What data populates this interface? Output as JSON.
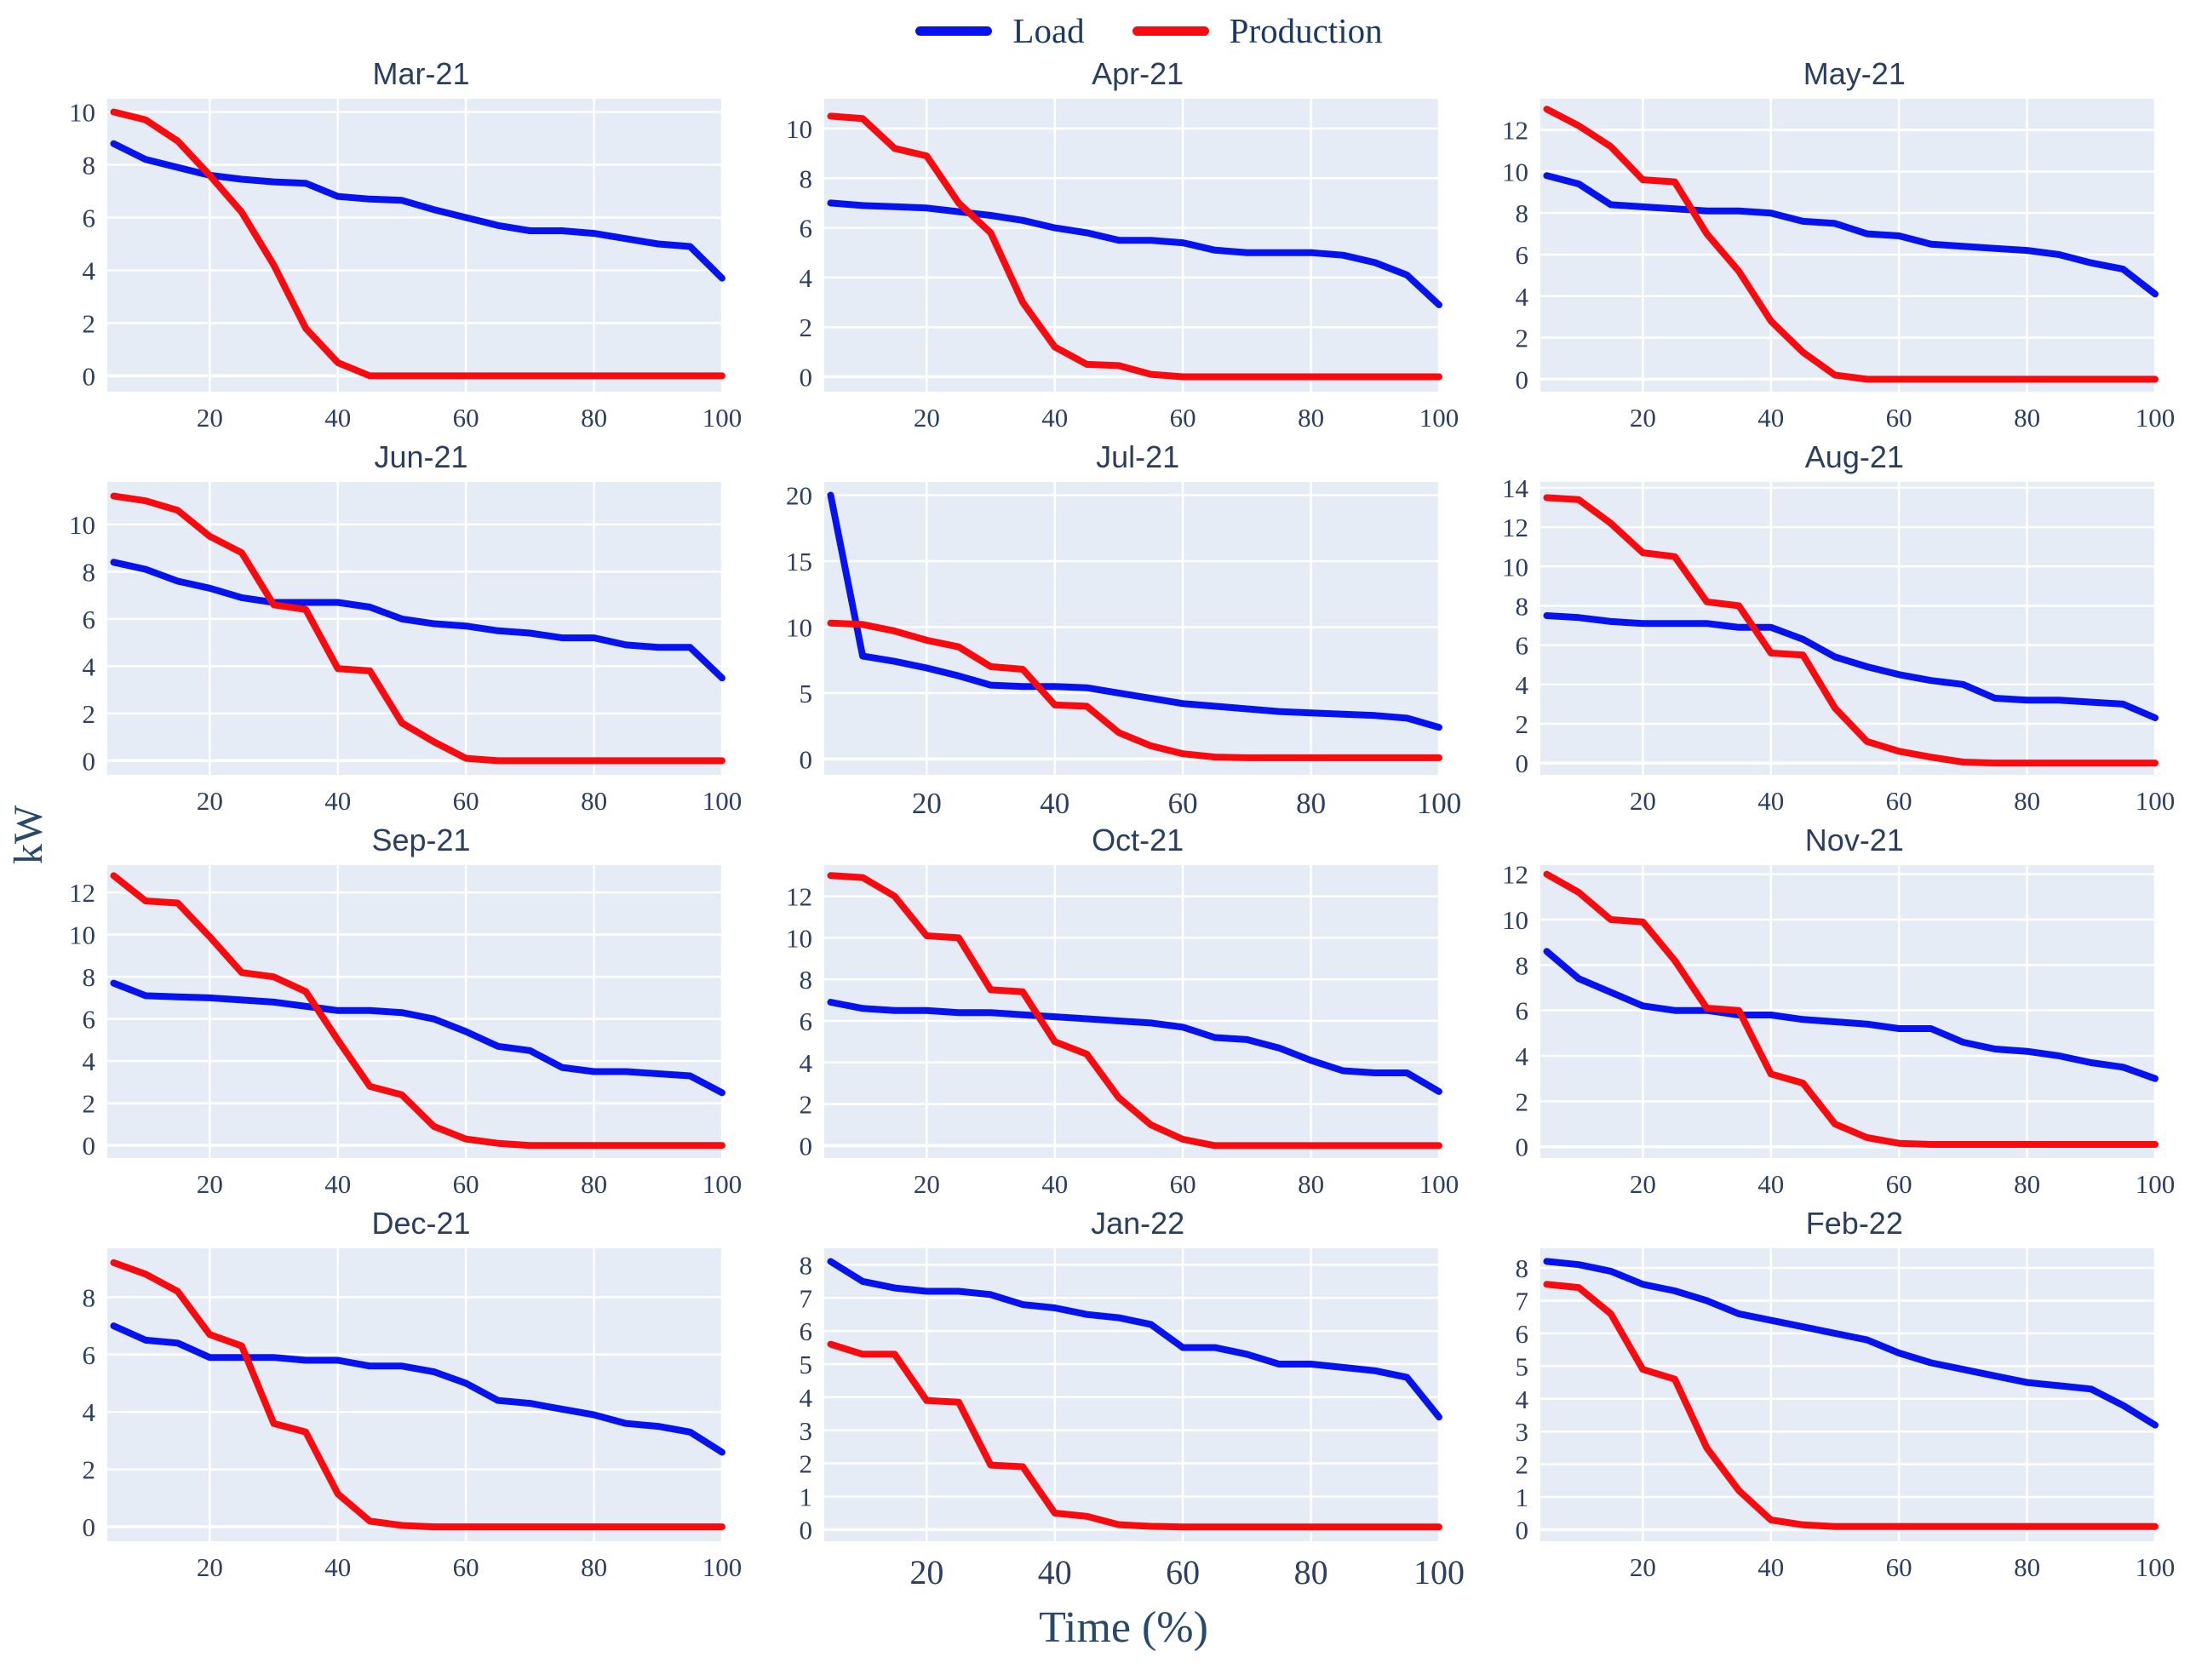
{
  "chart_data": {
    "type": "line",
    "xlabel": "Time (%)",
    "ylabel": "kW",
    "x": [
      5,
      10,
      15,
      20,
      25,
      30,
      35,
      40,
      45,
      50,
      55,
      60,
      65,
      70,
      75,
      80,
      85,
      90,
      95,
      100
    ],
    "xticks": [
      20,
      40,
      60,
      80,
      100
    ],
    "xlim": [
      4,
      100
    ],
    "grid": "on",
    "legend_position": "top-center",
    "legend": [
      {
        "name": "Load",
        "color": "#0713ef"
      },
      {
        "name": "Production",
        "color": "#f70b0f"
      }
    ],
    "colors": {
      "plot_bg": "#e5ecf6",
      "gridline": "#ffffff",
      "title_text": "#2a3f5f",
      "tick_text": "#2b3f63",
      "axis_label_text": "#27496d",
      "legend_text": "#1c3a63"
    },
    "charts": [
      {
        "title": "Mar-21",
        "yticks": [
          0,
          2,
          4,
          6,
          8,
          10
        ],
        "ylim": [
          -0.6,
          10.5
        ],
        "series": [
          {
            "name": "Load",
            "values": [
              8.8,
              8.2,
              7.9,
              7.6,
              7.45,
              7.35,
              7.3,
              6.8,
              6.7,
              6.65,
              6.3,
              6.0,
              5.7,
              5.5,
              5.5,
              5.4,
              5.2,
              5.0,
              4.9,
              3.7
            ]
          },
          {
            "name": "Production",
            "values": [
              10.0,
              9.7,
              8.9,
              7.6,
              6.2,
              4.2,
              1.8,
              0.5,
              0,
              0,
              0,
              0,
              0,
              0,
              0,
              0,
              0,
              0,
              0,
              0
            ]
          }
        ]
      },
      {
        "title": "Apr-21",
        "yticks": [
          0,
          2,
          4,
          6,
          8,
          10
        ],
        "ylim": [
          -0.6,
          11.2
        ],
        "series": [
          {
            "name": "Load",
            "values": [
              7.0,
              6.9,
              6.85,
              6.8,
              6.65,
              6.5,
              6.3,
              6.0,
              5.8,
              5.5,
              5.5,
              5.4,
              5.1,
              5.0,
              5.0,
              5.0,
              4.9,
              4.6,
              4.1,
              2.9
            ]
          },
          {
            "name": "Production",
            "values": [
              10.5,
              10.4,
              9.2,
              8.9,
              7.0,
              5.8,
              3.0,
              1.2,
              0.5,
              0.45,
              0.1,
              0,
              0,
              0,
              0,
              0,
              0,
              0,
              0,
              0
            ]
          }
        ]
      },
      {
        "title": "May-21",
        "yticks": [
          0,
          2,
          4,
          6,
          8,
          10,
          12
        ],
        "ylim": [
          -0.6,
          13.5
        ],
        "series": [
          {
            "name": "Load",
            "values": [
              9.8,
              9.4,
              8.4,
              8.3,
              8.2,
              8.1,
              8.1,
              8.0,
              7.6,
              7.5,
              7.0,
              6.9,
              6.5,
              6.4,
              6.3,
              6.2,
              6.0,
              5.6,
              5.3,
              4.1
            ]
          },
          {
            "name": "Production",
            "values": [
              13.0,
              12.2,
              11.2,
              9.6,
              9.5,
              7.0,
              5.2,
              2.8,
              1.3,
              0.2,
              0,
              0,
              0,
              0,
              0,
              0,
              0,
              0,
              0,
              0
            ]
          }
        ]
      },
      {
        "title": "Jun-21",
        "yticks": [
          0,
          2,
          4,
          6,
          8,
          10
        ],
        "ylim": [
          -0.6,
          11.8
        ],
        "series": [
          {
            "name": "Load",
            "values": [
              8.4,
              8.1,
              7.6,
              7.3,
              6.9,
              6.7,
              6.7,
              6.7,
              6.5,
              6.0,
              5.8,
              5.7,
              5.5,
              5.4,
              5.2,
              5.2,
              4.9,
              4.8,
              4.8,
              3.5
            ]
          },
          {
            "name": "Production",
            "values": [
              11.2,
              11.0,
              10.6,
              9.5,
              8.8,
              6.6,
              6.4,
              3.9,
              3.8,
              1.6,
              0.8,
              0.1,
              0,
              0,
              0,
              0,
              0,
              0,
              0,
              0
            ]
          }
        ]
      },
      {
        "title": "Jul-21",
        "yticks": [
          0,
          5,
          10,
          15,
          20
        ],
        "ylim": [
          -1.2,
          21.0
        ],
        "xtick_size": 35,
        "series": [
          {
            "name": "Load",
            "values": [
              20.0,
              7.8,
              7.4,
              6.9,
              6.3,
              5.6,
              5.5,
              5.5,
              5.4,
              5.0,
              4.6,
              4.2,
              4.0,
              3.8,
              3.6,
              3.5,
              3.4,
              3.3,
              3.1,
              2.4
            ]
          },
          {
            "name": "Production",
            "values": [
              10.3,
              10.2,
              9.7,
              9.0,
              8.5,
              7.0,
              6.8,
              4.1,
              4.0,
              2.0,
              1.0,
              0.4,
              0.15,
              0.1,
              0.1,
              0.1,
              0.1,
              0.1,
              0.1,
              0.1
            ]
          }
        ]
      },
      {
        "title": "Aug-21",
        "yticks": [
          0,
          2,
          4,
          6,
          8,
          10,
          12,
          14
        ],
        "ylim": [
          -0.6,
          14.3
        ],
        "series": [
          {
            "name": "Load",
            "values": [
              7.5,
              7.4,
              7.2,
              7.1,
              7.1,
              7.1,
              6.9,
              6.9,
              6.3,
              5.4,
              4.9,
              4.5,
              4.2,
              4.0,
              3.3,
              3.2,
              3.2,
              3.1,
              3.0,
              2.3
            ]
          },
          {
            "name": "Production",
            "values": [
              13.5,
              13.4,
              12.2,
              10.7,
              10.5,
              8.2,
              8.0,
              5.6,
              5.5,
              2.8,
              1.1,
              0.6,
              0.3,
              0.05,
              0,
              0,
              0,
              0,
              0,
              0
            ]
          }
        ]
      },
      {
        "title": "Sep-21",
        "yticks": [
          0,
          2,
          4,
          6,
          8,
          10,
          12
        ],
        "ylim": [
          -0.6,
          13.3
        ],
        "series": [
          {
            "name": "Load",
            "values": [
              7.7,
              7.1,
              7.05,
              7.0,
              6.9,
              6.8,
              6.6,
              6.4,
              6.4,
              6.3,
              6.0,
              5.4,
              4.7,
              4.5,
              3.7,
              3.5,
              3.5,
              3.4,
              3.3,
              2.5
            ]
          },
          {
            "name": "Production",
            "values": [
              12.8,
              11.6,
              11.5,
              9.9,
              8.2,
              8.0,
              7.3,
              5.0,
              2.8,
              2.4,
              0.9,
              0.3,
              0.1,
              0,
              0,
              0,
              0,
              0,
              0,
              0
            ]
          }
        ]
      },
      {
        "title": "Oct-21",
        "yticks": [
          0,
          2,
          4,
          6,
          8,
          10,
          12
        ],
        "ylim": [
          -0.6,
          13.5
        ],
        "series": [
          {
            "name": "Load",
            "values": [
              6.9,
              6.6,
              6.5,
              6.5,
              6.4,
              6.4,
              6.3,
              6.2,
              6.1,
              6.0,
              5.9,
              5.7,
              5.2,
              5.1,
              4.7,
              4.1,
              3.6,
              3.5,
              3.5,
              2.6
            ]
          },
          {
            "name": "Production",
            "values": [
              13.0,
              12.9,
              12.0,
              10.1,
              10.0,
              7.5,
              7.4,
              5.0,
              4.4,
              2.3,
              1.0,
              0.3,
              0,
              0,
              0,
              0,
              0,
              0,
              0,
              0
            ]
          }
        ]
      },
      {
        "title": "Nov-21",
        "yticks": [
          0,
          2,
          4,
          6,
          8,
          10,
          12
        ],
        "ylim": [
          -0.5,
          12.4
        ],
        "series": [
          {
            "name": "Load",
            "values": [
              8.6,
              7.4,
              6.8,
              6.2,
              6.0,
              6.0,
              5.8,
              5.8,
              5.6,
              5.5,
              5.4,
              5.2,
              5.2,
              4.6,
              4.3,
              4.2,
              4.0,
              3.7,
              3.5,
              3.0
            ]
          },
          {
            "name": "Production",
            "values": [
              12.0,
              11.2,
              10.0,
              9.9,
              8.2,
              6.1,
              6.0,
              3.2,
              2.8,
              1.0,
              0.4,
              0.15,
              0.1,
              0.1,
              0.1,
              0.1,
              0.1,
              0.1,
              0.1,
              0.1
            ]
          }
        ]
      },
      {
        "title": "Dec-21",
        "yticks": [
          0,
          2,
          4,
          6,
          8
        ],
        "ylim": [
          -0.5,
          9.7
        ],
        "series": [
          {
            "name": "Load",
            "values": [
              7.0,
              6.5,
              6.4,
              5.9,
              5.9,
              5.9,
              5.8,
              5.8,
              5.6,
              5.6,
              5.4,
              5.0,
              4.4,
              4.3,
              4.1,
              3.9,
              3.6,
              3.5,
              3.3,
              2.6
            ]
          },
          {
            "name": "Production",
            "values": [
              9.2,
              8.8,
              8.2,
              6.7,
              6.3,
              3.6,
              3.3,
              1.15,
              0.2,
              0.05,
              0,
              0,
              0,
              0,
              0,
              0,
              0,
              0,
              0,
              0
            ]
          }
        ]
      },
      {
        "title": "Jan-22",
        "yticks": [
          0,
          1,
          2,
          3,
          4,
          5,
          6,
          7,
          8
        ],
        "ylim": [
          -0.35,
          8.5
        ],
        "xtick_size": 40,
        "series": [
          {
            "name": "Load",
            "values": [
              8.1,
              7.5,
              7.3,
              7.2,
              7.2,
              7.1,
              6.8,
              6.7,
              6.5,
              6.4,
              6.2,
              5.5,
              5.5,
              5.3,
              5.0,
              5.0,
              4.9,
              4.8,
              4.6,
              3.4
            ]
          },
          {
            "name": "Production",
            "values": [
              5.6,
              5.3,
              5.3,
              3.9,
              3.85,
              1.95,
              1.9,
              0.5,
              0.4,
              0.15,
              0.1,
              0.08,
              0.08,
              0.08,
              0.08,
              0.08,
              0.08,
              0.08,
              0.08,
              0.08
            ]
          }
        ]
      },
      {
        "title": "Feb-22",
        "yticks": [
          0,
          1,
          2,
          3,
          4,
          5,
          6,
          7,
          8
        ],
        "ylim": [
          -0.35,
          8.6
        ],
        "series": [
          {
            "name": "Load",
            "values": [
              8.2,
              8.1,
              7.9,
              7.5,
              7.3,
              7.0,
              6.6,
              6.4,
              6.2,
              6.0,
              5.8,
              5.4,
              5.1,
              4.9,
              4.7,
              4.5,
              4.4,
              4.3,
              3.8,
              3.2
            ]
          },
          {
            "name": "Production",
            "values": [
              7.5,
              7.4,
              6.6,
              4.9,
              4.6,
              2.5,
              1.2,
              0.3,
              0.15,
              0.1,
              0.1,
              0.1,
              0.1,
              0.1,
              0.1,
              0.1,
              0.1,
              0.1,
              0.1,
              0.1
            ]
          }
        ]
      }
    ]
  }
}
